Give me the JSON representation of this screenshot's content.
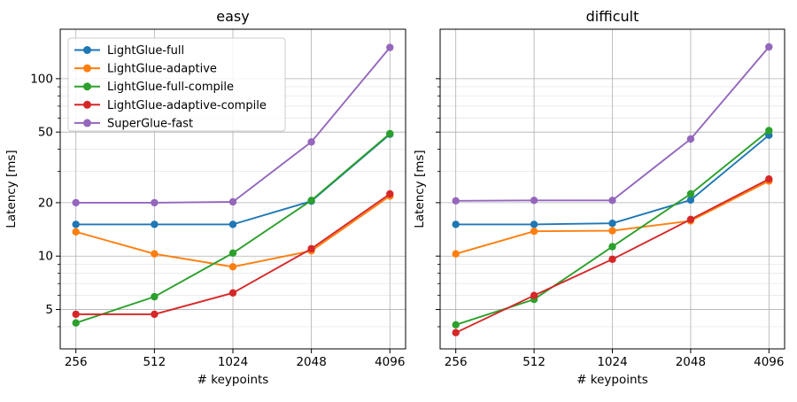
{
  "figure": {
    "background": "#ffffff",
    "text_color": "#000000",
    "spine_color": "#000000",
    "grid_major_color": "#b0b0b0",
    "grid_minor_color": "#e6e6e6",
    "legend_border_color": "#cccccc",
    "legend_background": "#ffffff"
  },
  "chart_data": {
    "type": "line",
    "x_scale": "log2",
    "y_scale": "log10",
    "x": [
      256,
      512,
      1024,
      2048,
      4096
    ],
    "x_tick_labels": [
      "256",
      "512",
      "1024",
      "2048",
      "4096"
    ],
    "xlabel": "# keypoints",
    "ylabel": "Latency [ms]",
    "xlim_log2": [
      7.8,
      12.2
    ],
    "ylim": [
      3,
      190
    ],
    "y_major_ticks": [
      5,
      10,
      20,
      50,
      100
    ],
    "y_major_tick_labels": [
      "5",
      "10",
      "20",
      "50",
      "100"
    ],
    "y_minor_ticks": [
      4,
      6,
      7,
      8,
      9,
      30,
      40,
      60,
      70,
      80,
      90
    ],
    "legend_position": "upper left",
    "grid": "both",
    "subplots": [
      {
        "title": "easy",
        "show_y_tick_labels": true,
        "show_legend": true,
        "series": [
          {
            "name": "LightGlue-full",
            "color": "#1f77b4",
            "values": [
              15.1,
              15.1,
              15.1,
              20.4,
              48.6
            ]
          },
          {
            "name": "LightGlue-adaptive",
            "color": "#ff7f0e",
            "values": [
              13.7,
              10.3,
              8.7,
              10.7,
              21.8
            ]
          },
          {
            "name": "LightGlue-full-compile",
            "color": "#2ca02c",
            "values": [
              4.2,
              5.9,
              10.4,
              20.6,
              49.0
            ]
          },
          {
            "name": "LightGlue-adaptive-compile",
            "color": "#d62728",
            "values": [
              4.7,
              4.7,
              6.2,
              11.0,
              22.4
            ]
          },
          {
            "name": "SuperGlue-fast",
            "color": "#9467bd",
            "values": [
              20.0,
              20.0,
              20.2,
              44.0,
              150.0
            ]
          }
        ]
      },
      {
        "title": "difficult",
        "show_y_tick_labels": false,
        "show_legend": false,
        "series": [
          {
            "name": "LightGlue-full",
            "color": "#1f77b4",
            "values": [
              15.1,
              15.1,
              15.3,
              20.7,
              48.0
            ]
          },
          {
            "name": "LightGlue-adaptive",
            "color": "#ff7f0e",
            "values": [
              10.3,
              13.8,
              13.9,
              15.8,
              26.5
            ]
          },
          {
            "name": "LightGlue-full-compile",
            "color": "#2ca02c",
            "values": [
              4.1,
              5.7,
              11.3,
              22.4,
              51.0
            ]
          },
          {
            "name": "LightGlue-adaptive-compile",
            "color": "#d62728",
            "values": [
              3.7,
              6.0,
              9.6,
              16.1,
              27.2
            ]
          },
          {
            "name": "SuperGlue-fast",
            "color": "#9467bd",
            "values": [
              20.5,
              20.6,
              20.6,
              45.7,
              151.0
            ]
          }
        ]
      }
    ]
  }
}
